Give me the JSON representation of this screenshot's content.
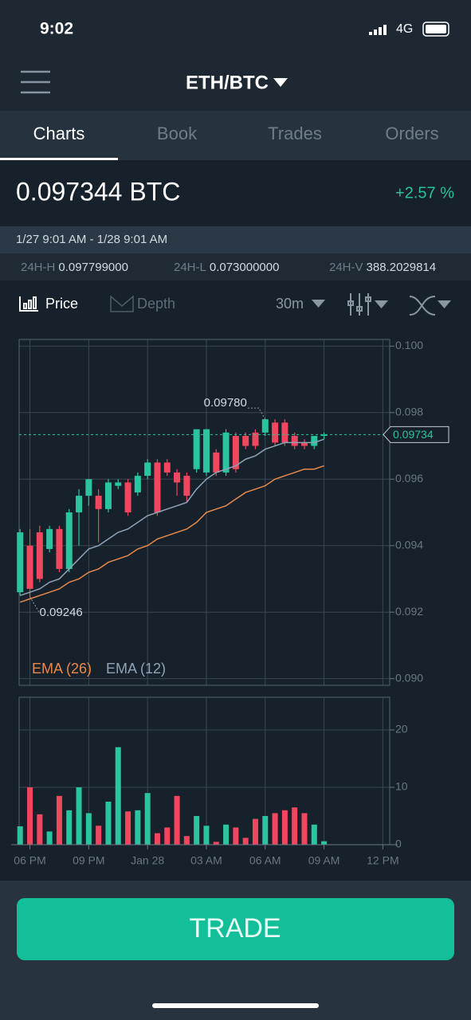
{
  "status_bar": {
    "time": "9:02",
    "network": "4G"
  },
  "header": {
    "title": "ETH/BTC"
  },
  "tabs": [
    "Charts",
    "Book",
    "Trades",
    "Orders"
  ],
  "ticker": {
    "price": "0.097344 BTC",
    "change": "+2.57 %"
  },
  "range": "1/27 9:01 AM - 1/28 9:01 AM",
  "stats": [
    {
      "label": "24H-H",
      "value": "0.097799000"
    },
    {
      "label": "24H-L",
      "value": "0.073000000"
    },
    {
      "label": "24H-V",
      "value": "388.2029814"
    }
  ],
  "toolbar": {
    "price": "Price",
    "depth": "Depth",
    "interval": "30m"
  },
  "chart_data": [
    {
      "type": "candlestick",
      "up_color": "#2bc4a0",
      "down_color": "#f0475f",
      "grid": true,
      "x": [
        0,
        1,
        2,
        3,
        4,
        5,
        6,
        7,
        8,
        9,
        10,
        11,
        12,
        13,
        14,
        15,
        16,
        17,
        18,
        19,
        20,
        21,
        22,
        23,
        24,
        25,
        26,
        27,
        28,
        29,
        30,
        31
      ],
      "open": [
        0.0926,
        0.094,
        0.0944,
        0.0939,
        0.0945,
        0.0933,
        0.095,
        0.0955,
        0.0955,
        0.0951,
        0.0958,
        0.0959,
        0.0956,
        0.0961,
        0.0965,
        0.0965,
        0.0962,
        0.0961,
        0.0963,
        0.0962,
        0.0968,
        0.0962,
        0.0973,
        0.0973,
        0.0974,
        0.0974,
        0.0977,
        0.0977,
        0.0973,
        0.0971,
        0.097,
        0.0973
      ],
      "high": [
        0.0945,
        0.0945,
        0.0946,
        0.0946,
        0.0946,
        0.0951,
        0.0957,
        0.096,
        0.0957,
        0.096,
        0.096,
        0.096,
        0.0962,
        0.0966,
        0.0966,
        0.0966,
        0.0963,
        0.0962,
        0.0975,
        0.0975,
        0.0969,
        0.0975,
        0.0974,
        0.0974,
        0.0975,
        0.0978,
        0.0978,
        0.0978,
        0.0974,
        0.0972,
        0.0973,
        0.0974
      ],
      "low": [
        0.0925,
        0.09246,
        0.0929,
        0.0938,
        0.0932,
        0.0932,
        0.094,
        0.0952,
        0.0941,
        0.095,
        0.0957,
        0.0949,
        0.0955,
        0.096,
        0.0949,
        0.0961,
        0.0955,
        0.0953,
        0.0962,
        0.0961,
        0.0961,
        0.0961,
        0.0962,
        0.0969,
        0.0969,
        0.0973,
        0.097,
        0.097,
        0.0969,
        0.0969,
        0.0969,
        0.0972
      ],
      "close": [
        0.0944,
        0.0927,
        0.093,
        0.0945,
        0.0933,
        0.095,
        0.0955,
        0.096,
        0.0951,
        0.0959,
        0.0959,
        0.095,
        0.0961,
        0.0965,
        0.095,
        0.0962,
        0.0959,
        0.0955,
        0.0975,
        0.0975,
        0.0962,
        0.0974,
        0.0963,
        0.097,
        0.097,
        0.0978,
        0.0971,
        0.0971,
        0.097,
        0.097,
        0.0973,
        0.09734
      ],
      "lines": [
        {
          "name": "EMA (26)",
          "color": "#e8894a",
          "values": [
            0.0923,
            0.0924,
            0.0925,
            0.0926,
            0.0927,
            0.0929,
            0.093,
            0.0932,
            0.0933,
            0.0935,
            0.0936,
            0.0937,
            0.0939,
            0.094,
            0.0942,
            0.0943,
            0.0944,
            0.0945,
            0.0947,
            0.095,
            0.0951,
            0.0952,
            0.0954,
            0.0956,
            0.0957,
            0.0958,
            0.096,
            0.0961,
            0.0962,
            0.0963,
            0.0963,
            0.0964
          ]
        },
        {
          "name": "EMA (12)",
          "color": "#8ea3b8",
          "values": [
            0.0925,
            0.0926,
            0.0927,
            0.0929,
            0.093,
            0.0933,
            0.0936,
            0.0939,
            0.094,
            0.0942,
            0.0944,
            0.0945,
            0.0947,
            0.0949,
            0.095,
            0.0951,
            0.0952,
            0.0953,
            0.0957,
            0.096,
            0.0962,
            0.0963,
            0.0964,
            0.0966,
            0.0967,
            0.0969,
            0.097,
            0.0971,
            0.0971,
            0.0971,
            0.0971,
            0.0972
          ]
        }
      ],
      "annotations": [
        {
          "label": "0.09780",
          "value": 0.0978,
          "x": 25
        },
        {
          "label": "0.09246",
          "value": 0.09246,
          "x": 1
        }
      ],
      "last_price": {
        "label": "0.09734",
        "value": 0.09734
      },
      "xlim": [
        -0.1,
        37.7
      ],
      "ylim": [
        0.0898,
        0.1002
      ],
      "yticks": [
        {
          "value": 0.1,
          "label": "0.100"
        },
        0.098,
        0.096,
        0.094,
        0.092,
        {
          "value": 0.09,
          "label": "0.090"
        }
      ]
    },
    {
      "type": "bar",
      "grid": true,
      "x": [
        0,
        1,
        2,
        3,
        4,
        5,
        6,
        7,
        8,
        9,
        10,
        11,
        12,
        13,
        14,
        15,
        16,
        17,
        18,
        19,
        20,
        21,
        22,
        23,
        24,
        25,
        26,
        27,
        28,
        29,
        30,
        31
      ],
      "values": [
        3.2,
        10,
        5.3,
        2.3,
        8.5,
        6,
        10,
        5.5,
        3.3,
        7.5,
        17,
        5.8,
        6,
        9,
        2,
        3,
        8.5,
        1.5,
        5,
        3.3,
        0.5,
        3.5,
        3,
        1.2,
        4.5,
        5,
        5.5,
        6,
        6.5,
        5.5,
        3.5,
        0.6
      ],
      "xlim": [
        -0.1,
        37.7
      ],
      "ylim": [
        0,
        25.7
      ],
      "yticks": [
        0,
        10,
        20
      ],
      "xticks": [
        {
          "value": 1,
          "label": "06 PM"
        },
        {
          "value": 7,
          "label": "09 PM"
        },
        {
          "value": 13,
          "label": "Jan 28"
        },
        {
          "value": 19,
          "label": "03 AM"
        },
        {
          "value": 25,
          "label": "06 AM"
        },
        {
          "value": 31,
          "label": "09 AM"
        },
        {
          "value": 37,
          "label": "12 PM"
        }
      ]
    }
  ],
  "button": "TRADE"
}
